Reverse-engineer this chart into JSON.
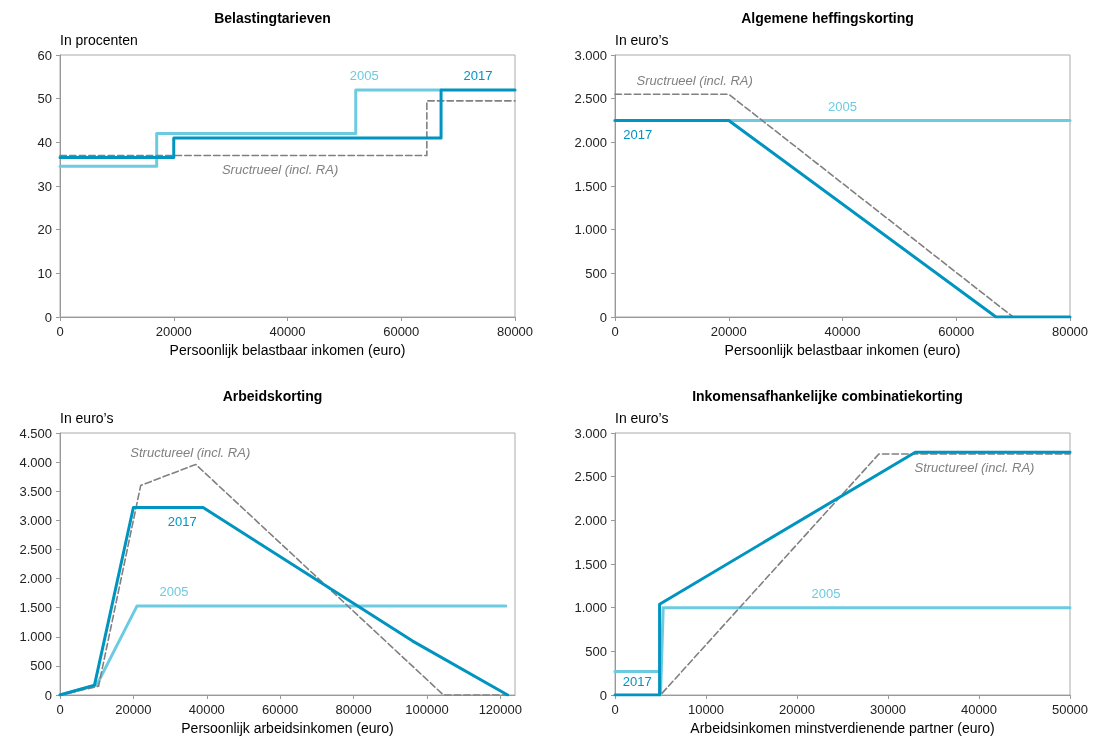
{
  "chart_data": [
    {
      "type": "line",
      "title": "Belastingtarieven",
      "ylabel": "In procenten",
      "xlabel": "Persoonlijk belastbaar inkomen (euro)",
      "xlim": [
        0,
        80000
      ],
      "xticks": [
        0,
        20000,
        40000,
        60000,
        80000
      ],
      "ylim": [
        0,
        60
      ],
      "yticks": [
        0,
        10,
        20,
        30,
        40,
        50,
        60
      ],
      "marker": "none",
      "series": [
        {
          "name": "2005",
          "color": "#6ccbe0",
          "x": [
            0,
            17000,
            17000,
            52000,
            52000,
            67000
          ],
          "values": [
            34.5,
            34.5,
            42,
            42,
            52,
            52
          ]
        },
        {
          "name": "Sructrueel (incl. RA)",
          "color": "#808080",
          "line_style": "dashed",
          "x": [
            0,
            64500,
            64500,
            80000
          ],
          "values": [
            37,
            37,
            49.5,
            49.5
          ]
        },
        {
          "name": "2017",
          "color": "#0094c0",
          "x": [
            0,
            20000,
            20000,
            67000,
            67000,
            80000
          ],
          "values": [
            36.5,
            36.5,
            41,
            41,
            52,
            52
          ]
        }
      ]
    },
    {
      "type": "line",
      "title": "Algemene heffingskorting",
      "ylabel": "In euro’s",
      "xlabel": "Persoonlijk belastbaar inkomen (euro)",
      "xlim": [
        0,
        80000
      ],
      "xticks": [
        0,
        20000,
        40000,
        60000,
        80000
      ],
      "ylim": [
        0,
        3000
      ],
      "yticks": [
        0,
        500,
        {
          "value": 1000,
          "label": "1.000"
        },
        {
          "value": 1500,
          "label": "1.500"
        },
        {
          "value": 2000,
          "label": "2.000"
        },
        {
          "value": 2500,
          "label": "2.500"
        },
        {
          "value": 3000,
          "label": "3.000"
        }
      ],
      "marker": "none",
      "series": [
        {
          "name": "2005",
          "color": "#6ccbe0",
          "x": [
            0,
            80000
          ],
          "values": [
            2250,
            2250
          ]
        },
        {
          "name": "Sructrueel (incl. RA)",
          "color": "#808080",
          "line_style": "dashed",
          "x": [
            0,
            20000,
            70000,
            80000
          ],
          "values": [
            2550,
            2550,
            0,
            0
          ]
        },
        {
          "name": "2017",
          "color": "#0094c0",
          "x": [
            0,
            20000,
            67000,
            80000
          ],
          "values": [
            2250,
            2250,
            0,
            0
          ]
        }
      ]
    },
    {
      "type": "line",
      "title": "Arbeidskorting",
      "ylabel": "In euro’s",
      "xlabel": "Persoonlijk arbeidsinkomen (euro)",
      "xlim": [
        0,
        124000
      ],
      "xticks": [
        0,
        20000,
        40000,
        60000,
        80000,
        100000,
        120000
      ],
      "ylim": [
        0,
        4500
      ],
      "yticks": [
        0,
        500,
        {
          "value": 1000,
          "label": "1.000"
        },
        {
          "value": 1500,
          "label": "1.500"
        },
        {
          "value": 2000,
          "label": "2.000"
        },
        {
          "value": 2500,
          "label": "2.500"
        },
        {
          "value": 3000,
          "label": "3.000"
        },
        {
          "value": 3500,
          "label": "3.500"
        },
        {
          "value": 4000,
          "label": "4.000"
        },
        {
          "value": 4500,
          "label": "4.500"
        }
      ],
      "marker": "none",
      "series": [
        {
          "name": "2005",
          "color": "#6ccbe0",
          "x": [
            0,
            10000,
            21000,
            121500
          ],
          "values": [
            0,
            170,
            1530,
            1530
          ]
        },
        {
          "name": "Structureel (incl. RA)",
          "color": "#808080",
          "line_style": "dashed",
          "x": [
            0,
            10500,
            22000,
            37000,
            104500,
            122000
          ],
          "values": [
            0,
            150,
            3600,
            3960,
            0,
            0
          ]
        },
        {
          "name": "2017",
          "color": "#0094c0",
          "x": [
            0,
            9400,
            20000,
            39000,
            96000,
            122000
          ],
          "values": [
            0,
            170,
            3220,
            3220,
            930,
            0
          ]
        }
      ]
    },
    {
      "type": "line",
      "title": "Inkomensafhankelijke combinatiekorting",
      "ylabel": "In euro’s",
      "xlabel": "Arbeidsinkomen minstverdienende partner (euro)",
      "xlim": [
        0,
        50000
      ],
      "xticks": [
        0,
        10000,
        20000,
        30000,
        40000,
        50000
      ],
      "ylim": [
        0,
        3000
      ],
      "yticks": [
        0,
        500,
        {
          "value": 1000,
          "label": "1.000"
        },
        {
          "value": 1500,
          "label": "1.500"
        },
        {
          "value": 2000,
          "label": "2.000"
        },
        {
          "value": 2500,
          "label": "2.500"
        },
        {
          "value": 3000,
          "label": "3.000"
        }
      ],
      "marker": "none",
      "series": [
        {
          "name": "2005",
          "color": "#6ccbe0",
          "x": [
            0,
            5000,
            5000,
            5300,
            50000
          ],
          "values": [
            270,
            270,
            0,
            1000,
            1000
          ]
        },
        {
          "name": "Structureel (incl. RA)",
          "color": "#808080",
          "line_style": "dashed",
          "x": [
            0,
            5000,
            29000,
            50000
          ],
          "values": [
            0,
            0,
            2760,
            2760
          ]
        },
        {
          "name": "2017",
          "color": "#0094c0",
          "x": [
            0,
            4900,
            4900,
            33000,
            50000
          ],
          "values": [
            0,
            0,
            1040,
            2780,
            2780
          ]
        }
      ]
    }
  ]
}
